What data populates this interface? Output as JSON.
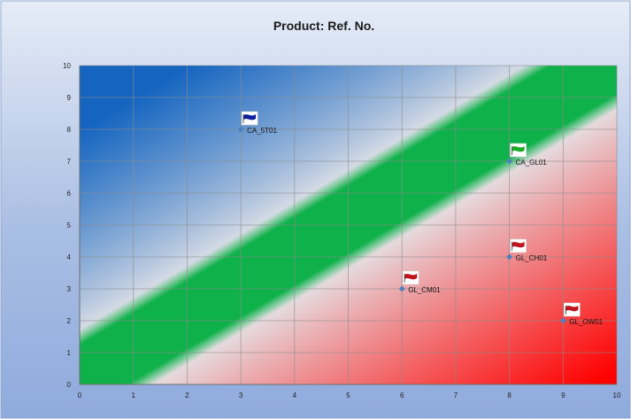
{
  "chart_data": {
    "type": "scatter",
    "title": "Product: Ref. No.",
    "xlabel": "",
    "ylabel": "",
    "xlim": [
      0,
      10
    ],
    "ylim": [
      0,
      10
    ],
    "x_ticks": [
      0,
      1,
      2,
      3,
      4,
      5,
      6,
      7,
      8,
      9,
      10
    ],
    "y_ticks": [
      0,
      1,
      2,
      3,
      4,
      5,
      6,
      7,
      8,
      9,
      10
    ],
    "grid": true,
    "background": {
      "upper_left_color": "#1565c0",
      "lower_right_color": "#ff0000",
      "band_color": "#0fb14a",
      "band_center_intercept": 0.2,
      "band_halfwidth": 1.3
    },
    "points": [
      {
        "label": "CA_5T01",
        "x": 3,
        "y": 8,
        "flag_color": "#0d1f9a"
      },
      {
        "label": "CA_GL01",
        "x": 8,
        "y": 7,
        "flag_color": "#1faa2a"
      },
      {
        "label": "GL_CH01",
        "x": 8,
        "y": 4,
        "flag_color": "#c0141e"
      },
      {
        "label": "GL_CM01",
        "x": 6,
        "y": 3,
        "flag_color": "#c0141e"
      },
      {
        "label": "GL_OW01",
        "x": 9,
        "y": 2,
        "flag_color": "#c0141e"
      }
    ],
    "marker_color": "#4f81bd"
  }
}
